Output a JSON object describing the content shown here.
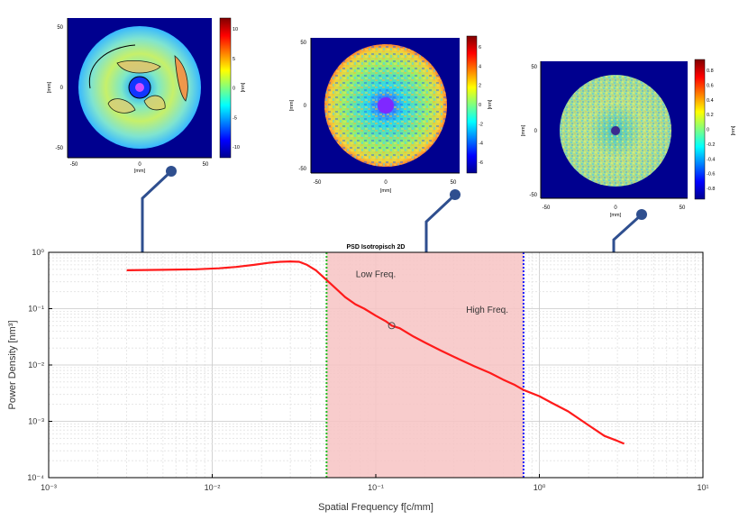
{
  "insets": [
    {
      "colorbar_ticks": [
        "10",
        "5",
        "0",
        "-5",
        "-10"
      ],
      "colorbar_unit": "[nm]",
      "x_ticks": [
        "-50",
        "0",
        "50"
      ],
      "y_ticks": [
        "50",
        "0",
        "-50"
      ],
      "xlabel": "[mm]",
      "ylabel": "[mm]"
    },
    {
      "colorbar_ticks": [
        "6",
        "4",
        "2",
        "0",
        "-2",
        "-4",
        "-6"
      ],
      "colorbar_unit": "[nm]",
      "x_ticks": [
        "-50",
        "0",
        "50"
      ],
      "y_ticks": [
        "50",
        "0",
        "-50"
      ],
      "xlabel": "[mm]",
      "ylabel": "[mm]"
    },
    {
      "colorbar_ticks": [
        "0.8",
        "0.6",
        "0.4",
        "0.2",
        "0",
        "-0.2",
        "-0.4",
        "-0.6",
        "-0.8"
      ],
      "colorbar_unit": "[nm]",
      "x_ticks": [
        "-50",
        "0",
        "50"
      ],
      "y_ticks": [
        "50",
        "0",
        "-50"
      ],
      "xlabel": "[mm]",
      "ylabel": "[mm]"
    }
  ],
  "chart_data": {
    "type": "line",
    "title": "PSD Isotropisch 2D",
    "xlabel": "Spatial Frequency f[c/mm]",
    "ylabel": "Power Density [nm³]",
    "xscale": "log",
    "yscale": "log",
    "xlim": [
      0.001,
      10
    ],
    "ylim": [
      0.0001,
      1
    ],
    "grid": true,
    "x_tick_labels": [
      "10⁻³",
      "10⁻²",
      "10⁻¹",
      "10⁰",
      "10¹"
    ],
    "y_tick_labels": [
      "10⁰",
      "10⁻¹",
      "10⁻²",
      "10⁻³",
      "10⁻⁴"
    ],
    "series": [
      {
        "color": "#ff1a1a",
        "x": [
          0.003,
          0.005,
          0.008,
          0.011,
          0.014,
          0.018,
          0.022,
          0.026,
          0.03,
          0.034,
          0.038,
          0.043,
          0.048,
          0.055,
          0.065,
          0.075,
          0.085,
          0.1,
          0.115,
          0.125,
          0.14,
          0.17,
          0.2,
          0.25,
          0.3,
          0.4,
          0.5,
          0.6,
          0.7,
          0.8,
          1.0,
          1.2,
          1.5,
          2.0,
          2.5,
          3.0,
          3.3
        ],
        "y": [
          0.48,
          0.49,
          0.5,
          0.52,
          0.55,
          0.6,
          0.65,
          0.68,
          0.69,
          0.68,
          0.6,
          0.48,
          0.36,
          0.25,
          0.16,
          0.12,
          0.1,
          0.075,
          0.06,
          0.05,
          0.045,
          0.032,
          0.025,
          0.018,
          0.014,
          0.0095,
          0.0072,
          0.0055,
          0.0045,
          0.0036,
          0.0028,
          0.0021,
          0.0015,
          0.00085,
          0.00055,
          0.00045,
          0.0004
        ]
      }
    ],
    "marker": {
      "x": 0.125,
      "y": 0.05
    },
    "vlines": [
      {
        "x": 0.05,
        "color": "#22bb22"
      },
      {
        "x": 0.8,
        "color": "#1a1aff"
      }
    ],
    "shaded_band": {
      "x_from": 0.05,
      "x_to": 0.8,
      "color": "#f7c3c3"
    },
    "annotations": [
      {
        "text": "Low Freq.",
        "x": 0.1,
        "y": 0.36
      },
      {
        "text": "High Freq.",
        "x": 0.48,
        "y": 0.085
      }
    ]
  }
}
